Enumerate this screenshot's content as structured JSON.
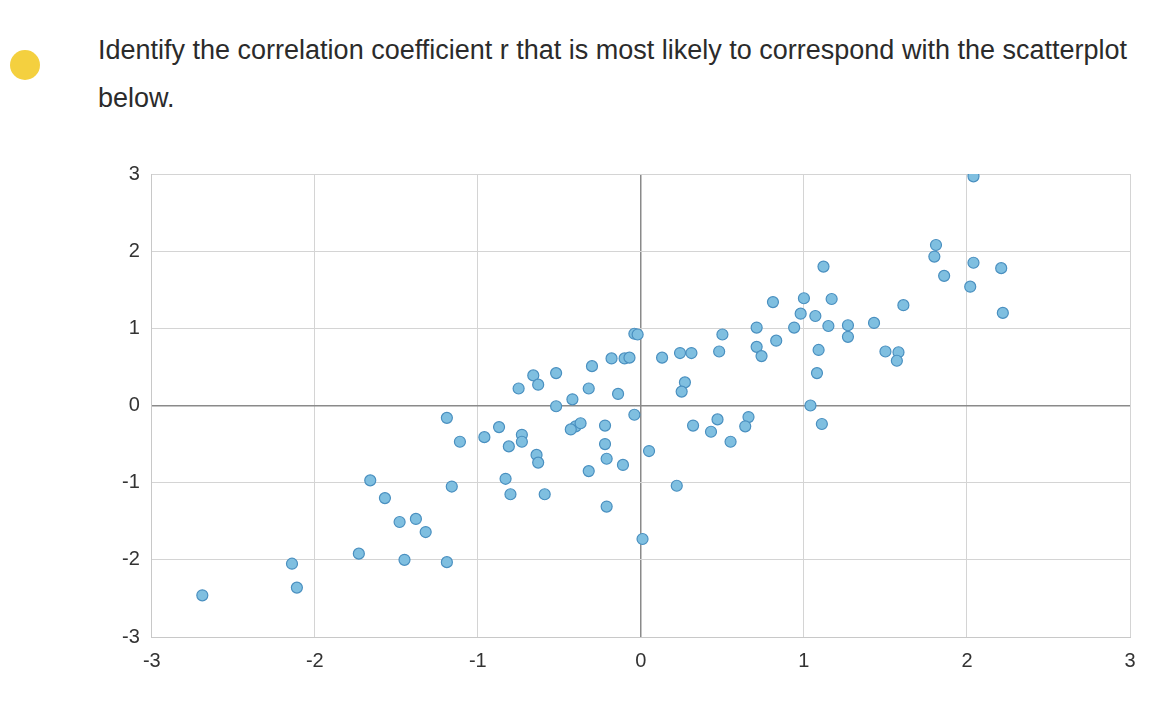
{
  "chart_data": {
    "type": "scatter",
    "title": "Identify the correlation coefficient r that is most likely to correspond with the scatterplot below.",
    "x": [
      2.04,
      1.81,
      1.8,
      2.04,
      2.21,
      1.12,
      1.86,
      2.02,
      0.81,
      1.0,
      1.17,
      1.61,
      2.22,
      0.98,
      1.07,
      0.94,
      1.15,
      1.27,
      1.27,
      1.43,
      0.5,
      0.71,
      -0.04,
      -0.02,
      0.83,
      0.71,
      0.74,
      1.09,
      1.5,
      1.58,
      1.57,
      0.48,
      0.24,
      0.31,
      0.13,
      -0.18,
      -0.1,
      -0.07,
      -0.3,
      1.08,
      -0.52,
      -0.66,
      -0.63,
      -0.75,
      0.27,
      0.25,
      -0.32,
      -0.14,
      -0.42,
      -0.52,
      1.04,
      -0.04,
      -1.19,
      -0.4,
      -0.37,
      -0.43,
      -0.22,
      0.32,
      0.47,
      0.43,
      0.55,
      0.66,
      0.64,
      1.11,
      -0.87,
      -0.96,
      -1.11,
      -0.73,
      -0.73,
      -0.81,
      -0.22,
      0.05,
      -0.64,
      -0.63,
      -0.21,
      -0.11,
      -0.32,
      -0.83,
      -0.8,
      -0.59,
      -1.16,
      0.22,
      -1.66,
      -1.57,
      -0.21,
      -1.48,
      -1.38,
      -1.32,
      0.01,
      -1.73,
      -1.45,
      -1.19,
      -2.14,
      -2.11,
      -2.69
    ],
    "values": [
      2.97,
      2.08,
      1.93,
      1.85,
      1.78,
      1.8,
      1.68,
      1.54,
      1.34,
      1.39,
      1.38,
      1.3,
      1.2,
      1.19,
      1.16,
      1.01,
      1.03,
      1.04,
      0.89,
      1.07,
      0.92,
      1.01,
      0.93,
      0.92,
      0.84,
      0.76,
      0.64,
      0.72,
      0.7,
      0.69,
      0.58,
      0.7,
      0.68,
      0.68,
      0.62,
      0.61,
      0.61,
      0.62,
      0.51,
      0.42,
      0.42,
      0.39,
      0.27,
      0.22,
      0.3,
      0.18,
      0.22,
      0.15,
      0.08,
      -0.01,
      0.0,
      -0.12,
      -0.16,
      -0.27,
      -0.23,
      -0.31,
      -0.26,
      -0.26,
      -0.18,
      -0.34,
      -0.47,
      -0.15,
      -0.27,
      -0.24,
      -0.28,
      -0.41,
      -0.47,
      -0.38,
      -0.47,
      -0.53,
      -0.5,
      -0.59,
      -0.64,
      -0.74,
      -0.69,
      -0.77,
      -0.85,
      -0.95,
      -1.15,
      -1.15,
      -1.05,
      -1.04,
      -0.97,
      -1.2,
      -1.31,
      -1.51,
      -1.47,
      -1.64,
      -1.73,
      -1.92,
      -2.0,
      -2.03,
      -2.05,
      -2.36,
      -2.46
    ],
    "color": "#7fbfe0",
    "marker": "circle",
    "xlim": [
      -3,
      3
    ],
    "xticks": [
      -3,
      -2,
      -1,
      0,
      1,
      2,
      3
    ],
    "ylim": [
      -3,
      3
    ],
    "yticks": [
      -3,
      -2,
      -1,
      0,
      1,
      2,
      3
    ],
    "grid": true
  }
}
